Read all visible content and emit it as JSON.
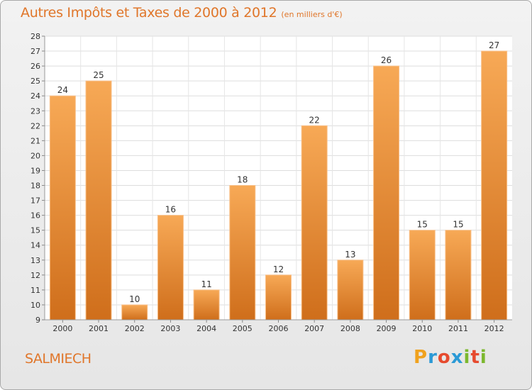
{
  "title": "Autres Impôts et Taxes de 2000 à 2012",
  "subtitle": "(en milliers d'€)",
  "location": "SALMIECH",
  "logo": {
    "letters": [
      "P",
      "r",
      "o",
      "x",
      "i",
      "t",
      "i"
    ],
    "colors": [
      "#f0a21e",
      "#2b9ad6",
      "#e64a2e",
      "#2b9ad6",
      "#7cb82f",
      "#e64a2e",
      "#7cb82f"
    ]
  },
  "colors": {
    "accent": "#e0762a",
    "bar_light": "#f7a956",
    "bar_dark": "#cf6e1b"
  },
  "chart_data": {
    "type": "bar",
    "categories": [
      "2000",
      "2001",
      "2002",
      "2003",
      "2004",
      "2005",
      "2006",
      "2007",
      "2008",
      "2009",
      "2010",
      "2011",
      "2012"
    ],
    "values": [
      24,
      25,
      10,
      16,
      11,
      18,
      12,
      22,
      13,
      26,
      15,
      15,
      27
    ],
    "ylim": [
      9,
      28
    ],
    "yticks": [
      9,
      10,
      11,
      12,
      13,
      14,
      15,
      16,
      17,
      18,
      19,
      20,
      21,
      22,
      23,
      24,
      25,
      26,
      27,
      28
    ],
    "grid": true,
    "legend": "none"
  }
}
